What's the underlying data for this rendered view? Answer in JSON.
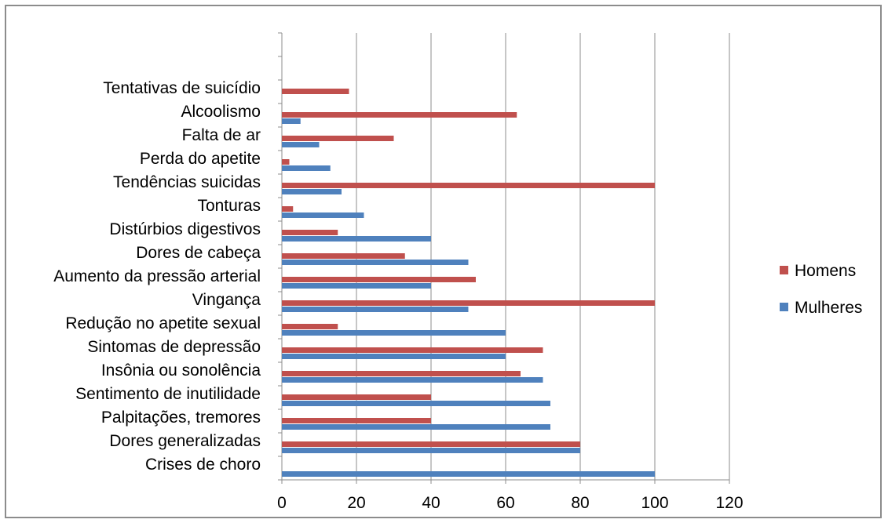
{
  "chart_data": {
    "type": "bar",
    "orientation": "horizontal",
    "categories": [
      "Crises de choro",
      "Dores generalizadas",
      "Palpitações, tremores",
      "Sentimento de inutilidade",
      "Insônia ou sonolência",
      "Sintomas de depressão",
      "Redução no apetite sexual",
      "Vingança",
      "Aumento da pressão  arterial",
      "Dores de cabeça",
      "Distúrbios digestivos",
      "Tonturas",
      "Tendências suicidas",
      "Perda do apetite",
      "Falta de ar",
      "Alcoolismo",
      "Tentativas de suicídio",
      "",
      ""
    ],
    "series": [
      {
        "name": "Mulheres",
        "color": "#4f81bd",
        "values": [
          100,
          80,
          72,
          72,
          70,
          60,
          60,
          50,
          40,
          50,
          40,
          22,
          16,
          13,
          10,
          5,
          0,
          0,
          0
        ]
      },
      {
        "name": "Homens",
        "color": "#c0504d",
        "values": [
          0,
          80,
          40,
          40,
          64,
          70,
          15,
          100,
          52,
          33,
          15,
          3,
          100,
          2,
          30,
          63,
          18,
          0,
          0
        ]
      }
    ],
    "xlim": [
      0,
      120
    ],
    "xticks": [
      "0",
      "20",
      "40",
      "60",
      "80",
      "100",
      "120"
    ],
    "grid": "vertical",
    "legend_position": "right",
    "legend": [
      "Homens",
      "Mulheres"
    ]
  }
}
